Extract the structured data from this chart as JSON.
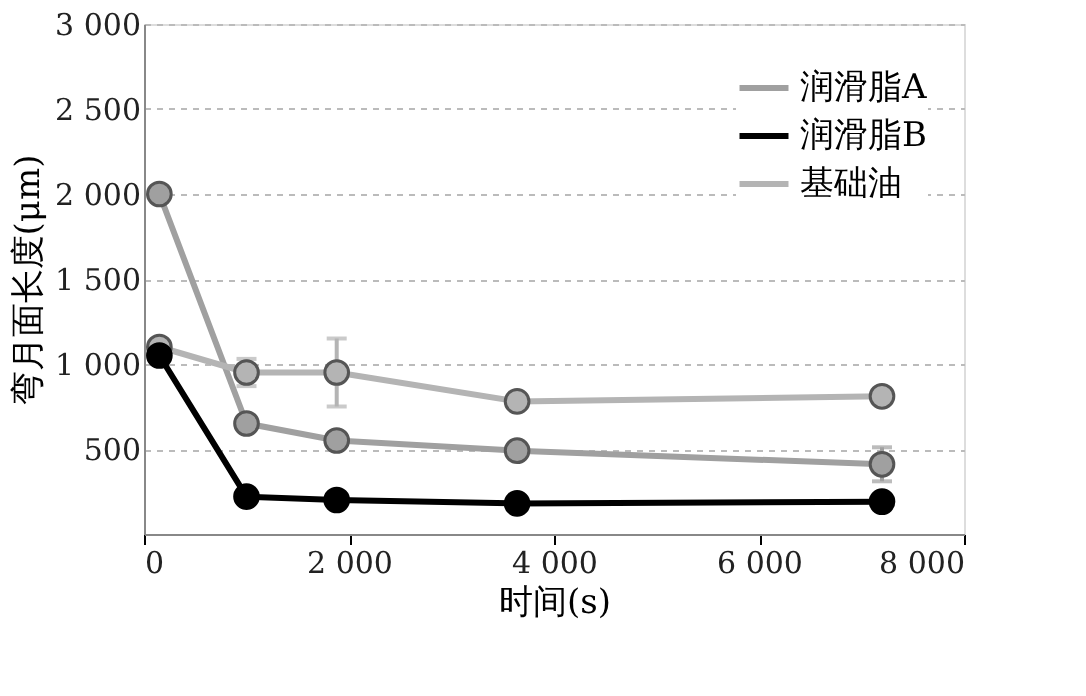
{
  "chart_data": {
    "type": "line",
    "xlabel": "时间(s)",
    "ylabel": "弯月面长度(μm)",
    "xlim": [
      0,
      8000
    ],
    "ylim": [
      0,
      3000
    ],
    "xticks": [
      0,
      {
        "value": 2000,
        "label": "2 000"
      },
      {
        "value": 4000,
        "label": "4 000"
      },
      {
        "value": 6000,
        "label": "6 000"
      },
      {
        "value": 8000,
        "label": "8 000"
      }
    ],
    "yticks": [
      500,
      {
        "value": 1000,
        "label": "1 000"
      },
      {
        "value": 1500,
        "label": "1 500"
      },
      {
        "value": 2000,
        "label": "2 000"
      },
      {
        "value": 2500,
        "label": "2 500"
      },
      {
        "value": 3000,
        "label": "3 000"
      }
    ],
    "x": [
      150,
      1000,
      1880,
      3640,
      7200
    ],
    "series": [
      {
        "name": "润滑脂A",
        "color": "#a0a0a0",
        "values": [
          2000,
          650,
          550,
          490,
          410
        ],
        "errors": [
          null,
          null,
          null,
          null,
          100
        ]
      },
      {
        "name": "润滑脂B",
        "color": "#000000",
        "values": [
          1050,
          220,
          200,
          180,
          190
        ]
      },
      {
        "name": "基础油",
        "color": "#b4b4b4",
        "values": [
          1100,
          950,
          950,
          780,
          810
        ],
        "errors": [
          null,
          80,
          200,
          null,
          null
        ]
      }
    ],
    "marker": "circle",
    "line_style": "solid",
    "grid": "y",
    "legend": "top right"
  }
}
